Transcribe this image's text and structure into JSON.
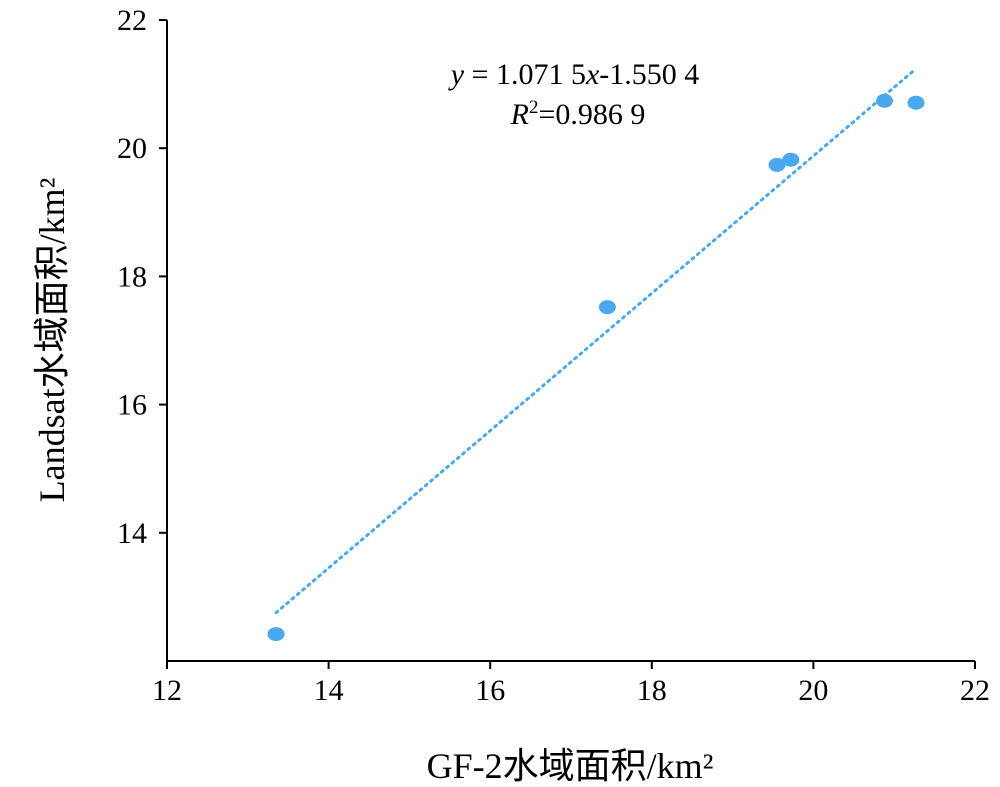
{
  "chart_data": {
    "type": "scatter",
    "title": "",
    "xlabel": "GF-2水域面积/km²",
    "ylabel": "Landsat水域面积/km²",
    "xlim": [
      12,
      22
    ],
    "ylim": [
      12,
      22
    ],
    "x_ticks": [
      "12",
      "14",
      "16",
      "18",
      "20",
      "22"
    ],
    "y_ticks": [
      "14",
      "16",
      "18",
      "20",
      "22"
    ],
    "grid": false,
    "points": [
      {
        "x": 13.35,
        "y": 12.42
      },
      {
        "x": 17.45,
        "y": 17.52
      },
      {
        "x": 19.55,
        "y": 19.74
      },
      {
        "x": 19.72,
        "y": 19.82
      },
      {
        "x": 20.88,
        "y": 20.74
      },
      {
        "x": 21.27,
        "y": 20.71
      }
    ],
    "trendline": {
      "slope": 1.0715,
      "intercept": -1.5504,
      "x_range": [
        13.35,
        21.27
      ]
    },
    "equation": {
      "y_var": "y",
      "eq_rest": " = 1.071 5",
      "x_var": "x",
      "eq_tail": "-1.550 4",
      "r_var": "R",
      "r_exp": "2",
      "r_value": "=0.986 9"
    },
    "color": "#4aa8ef"
  }
}
